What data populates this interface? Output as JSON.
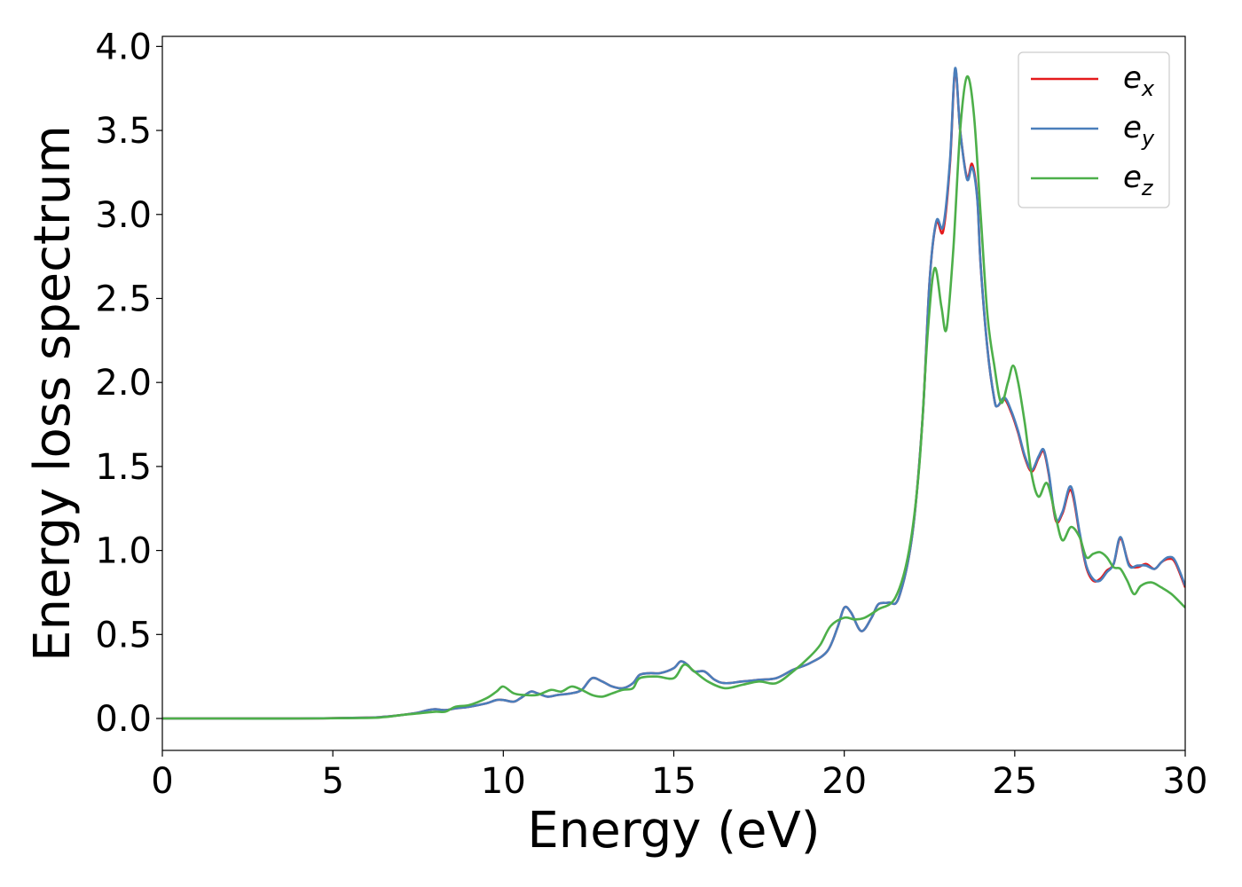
{
  "chart_data": {
    "type": "line",
    "title": "",
    "xlabel": "Energy (eV)",
    "ylabel": "Energy loss spectrum",
    "xlim": [
      0,
      30
    ],
    "ylim": [
      -0.19,
      4.06
    ],
    "xticks": [
      0,
      5,
      10,
      15,
      20,
      25,
      30
    ],
    "xtick_labels": [
      "0",
      "5",
      "10",
      "15",
      "20",
      "25",
      "30"
    ],
    "yticks": [
      0.0,
      0.5,
      1.0,
      1.5,
      2.0,
      2.5,
      3.0,
      3.5,
      4.0
    ],
    "ytick_labels": [
      "0.0",
      "0.5",
      "1.0",
      "1.5",
      "2.0",
      "2.5",
      "3.0",
      "3.5",
      "4.0"
    ],
    "grid": false,
    "legend_position": "top-right",
    "series": [
      {
        "name": "e_x",
        "label_base": "e",
        "label_sub": "x",
        "color": "#e41a1c",
        "x": [
          0,
          2,
          4,
          6,
          6.5,
          7,
          7.5,
          7.8,
          8.0,
          8.3,
          8.6,
          9.0,
          9.5,
          9.8,
          10.0,
          10.3,
          10.5,
          10.8,
          11.0,
          11.3,
          11.6,
          12.0,
          12.3,
          12.6,
          12.9,
          13.2,
          13.5,
          13.8,
          14.0,
          14.3,
          14.6,
          15.0,
          15.2,
          15.4,
          15.6,
          15.9,
          16.2,
          16.5,
          17.0,
          17.5,
          18.0,
          18.5,
          19.0,
          19.5,
          19.8,
          20.0,
          20.2,
          20.5,
          20.8,
          21.0,
          21.3,
          21.6,
          22.0,
          22.3,
          22.5,
          22.7,
          22.9,
          23.1,
          23.25,
          23.4,
          23.6,
          23.75,
          23.9,
          24.0,
          24.2,
          24.4,
          24.5,
          24.7,
          24.9,
          25.1,
          25.3,
          25.5,
          25.7,
          25.85,
          26.0,
          26.2,
          26.4,
          26.65,
          26.9,
          27.1,
          27.3,
          27.5,
          27.7,
          27.9,
          28.1,
          28.35,
          28.6,
          28.85,
          29.1,
          29.3,
          29.5,
          29.7,
          30
        ],
        "values": [
          0,
          0,
          0,
          0.005,
          0.01,
          0.02,
          0.035,
          0.05,
          0.055,
          0.05,
          0.06,
          0.07,
          0.09,
          0.11,
          0.11,
          0.1,
          0.12,
          0.16,
          0.15,
          0.13,
          0.14,
          0.15,
          0.17,
          0.24,
          0.22,
          0.19,
          0.18,
          0.21,
          0.26,
          0.27,
          0.27,
          0.3,
          0.34,
          0.32,
          0.28,
          0.28,
          0.23,
          0.21,
          0.22,
          0.23,
          0.24,
          0.29,
          0.33,
          0.4,
          0.54,
          0.66,
          0.63,
          0.52,
          0.6,
          0.68,
          0.69,
          0.72,
          1.1,
          1.8,
          2.6,
          2.95,
          2.9,
          3.3,
          3.86,
          3.5,
          3.22,
          3.3,
          3.1,
          2.7,
          2.2,
          1.9,
          1.86,
          1.9,
          1.82,
          1.7,
          1.55,
          1.47,
          1.55,
          1.59,
          1.45,
          1.18,
          1.22,
          1.36,
          1.1,
          0.9,
          0.82,
          0.83,
          0.88,
          0.92,
          1.07,
          0.92,
          0.9,
          0.92,
          0.89,
          0.93,
          0.95,
          0.93,
          0.78
        ]
      },
      {
        "name": "e_y",
        "label_base": "e",
        "label_sub": "y",
        "color": "#4a7ebb",
        "x": [
          0,
          2,
          4,
          6,
          6.5,
          7,
          7.5,
          7.8,
          8.0,
          8.3,
          8.6,
          9.0,
          9.5,
          9.8,
          10.0,
          10.3,
          10.5,
          10.8,
          11.0,
          11.3,
          11.6,
          12.0,
          12.3,
          12.6,
          12.9,
          13.2,
          13.5,
          13.8,
          14.0,
          14.3,
          14.6,
          15.0,
          15.2,
          15.4,
          15.6,
          15.9,
          16.2,
          16.5,
          17.0,
          17.5,
          18.0,
          18.5,
          19.0,
          19.5,
          19.8,
          20.0,
          20.2,
          20.5,
          20.8,
          21.0,
          21.3,
          21.6,
          22.0,
          22.3,
          22.5,
          22.7,
          22.9,
          23.1,
          23.25,
          23.4,
          23.6,
          23.75,
          23.9,
          24.0,
          24.2,
          24.4,
          24.5,
          24.7,
          24.9,
          25.1,
          25.3,
          25.5,
          25.7,
          25.85,
          26.0,
          26.2,
          26.4,
          26.65,
          26.9,
          27.1,
          27.3,
          27.5,
          27.7,
          27.9,
          28.1,
          28.35,
          28.6,
          28.85,
          29.1,
          29.3,
          29.5,
          29.7,
          30
        ],
        "values": [
          0,
          0,
          0,
          0.005,
          0.01,
          0.02,
          0.035,
          0.05,
          0.055,
          0.05,
          0.06,
          0.07,
          0.09,
          0.11,
          0.11,
          0.1,
          0.12,
          0.16,
          0.15,
          0.13,
          0.14,
          0.15,
          0.17,
          0.24,
          0.22,
          0.19,
          0.18,
          0.21,
          0.26,
          0.27,
          0.27,
          0.3,
          0.34,
          0.32,
          0.28,
          0.28,
          0.23,
          0.21,
          0.22,
          0.23,
          0.24,
          0.29,
          0.33,
          0.4,
          0.54,
          0.66,
          0.63,
          0.52,
          0.6,
          0.68,
          0.69,
          0.72,
          1.1,
          1.8,
          2.6,
          2.96,
          2.93,
          3.32,
          3.87,
          3.5,
          3.21,
          3.28,
          3.09,
          2.7,
          2.2,
          1.9,
          1.86,
          1.91,
          1.83,
          1.71,
          1.56,
          1.48,
          1.56,
          1.6,
          1.46,
          1.19,
          1.23,
          1.38,
          1.11,
          0.91,
          0.83,
          0.82,
          0.87,
          0.92,
          1.08,
          0.91,
          0.91,
          0.91,
          0.89,
          0.93,
          0.96,
          0.94,
          0.79
        ]
      },
      {
        "name": "e_z",
        "label_base": "e",
        "label_sub": "z",
        "color": "#4daf4a",
        "x": [
          0,
          2,
          4,
          6,
          6.5,
          7,
          7.5,
          8.0,
          8.3,
          8.6,
          9.0,
          9.5,
          9.8,
          10.0,
          10.3,
          10.6,
          11.0,
          11.4,
          11.7,
          12.0,
          12.3,
          12.6,
          12.9,
          13.2,
          13.5,
          13.8,
          14.0,
          14.5,
          15.0,
          15.3,
          15.6,
          16.0,
          16.5,
          17.0,
          17.5,
          18.0,
          18.5,
          19.0,
          19.3,
          19.6,
          20.0,
          20.3,
          20.6,
          21.0,
          21.5,
          21.9,
          22.2,
          22.45,
          22.65,
          22.85,
          23.0,
          23.2,
          23.4,
          23.6,
          23.8,
          24.0,
          24.2,
          24.4,
          24.6,
          24.8,
          24.95,
          25.1,
          25.3,
          25.5,
          25.7,
          25.95,
          26.2,
          26.4,
          26.65,
          26.9,
          27.1,
          27.3,
          27.5,
          27.7,
          27.9,
          28.1,
          28.3,
          28.5,
          28.7,
          29.0,
          29.3,
          29.6,
          30
        ],
        "values": [
          0,
          0,
          0,
          0.003,
          0.008,
          0.02,
          0.03,
          0.04,
          0.04,
          0.07,
          0.08,
          0.12,
          0.16,
          0.19,
          0.15,
          0.14,
          0.14,
          0.17,
          0.16,
          0.19,
          0.17,
          0.14,
          0.13,
          0.15,
          0.17,
          0.18,
          0.24,
          0.25,
          0.24,
          0.32,
          0.28,
          0.22,
          0.18,
          0.2,
          0.22,
          0.21,
          0.28,
          0.37,
          0.44,
          0.55,
          0.6,
          0.59,
          0.6,
          0.65,
          0.72,
          1.0,
          1.5,
          2.3,
          2.68,
          2.45,
          2.32,
          2.8,
          3.5,
          3.82,
          3.6,
          3.0,
          2.4,
          2.1,
          1.88,
          2.0,
          2.1,
          2.0,
          1.75,
          1.45,
          1.32,
          1.4,
          1.2,
          1.06,
          1.14,
          1.08,
          0.96,
          0.98,
          0.99,
          0.96,
          0.9,
          0.89,
          0.82,
          0.74,
          0.79,
          0.81,
          0.78,
          0.74,
          0.66
        ]
      }
    ]
  }
}
